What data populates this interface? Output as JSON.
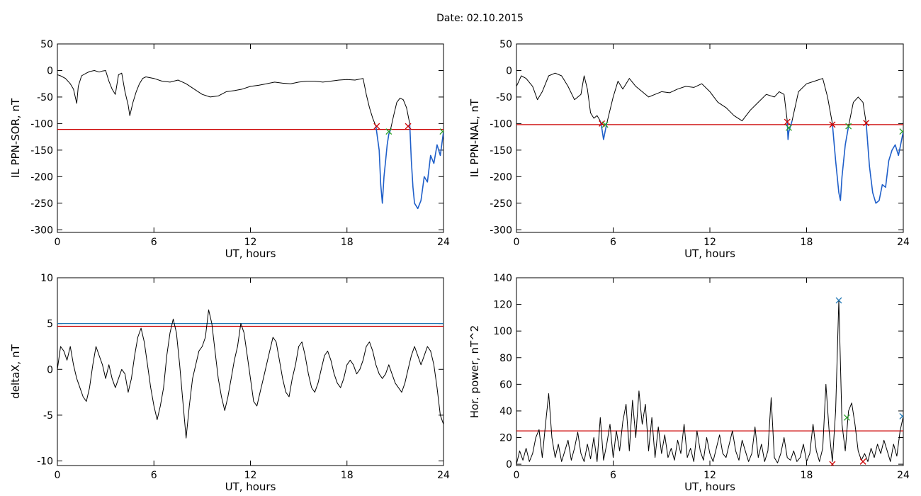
{
  "date_label": "Date:  02.10.2015",
  "chart_data": [
    {
      "id": "ppn-sor",
      "type": "line",
      "xlabel": "UT, hours",
      "ylabel": "IL PPN-SOR, nT",
      "xlim": [
        0,
        24
      ],
      "ylim": [
        -305,
        50
      ],
      "xticks": [
        0,
        6,
        12,
        18,
        24
      ],
      "yticks": [
        50,
        0,
        -50,
        -100,
        -150,
        -200,
        -250,
        -300
      ],
      "grid": false,
      "threshold": {
        "value": -111,
        "color": "#cc0000"
      },
      "series": [
        {
          "color": "#000000",
          "x": [
            0,
            0.2,
            0.5,
            0.8,
            1.0,
            1.2,
            1.3,
            1.5,
            1.8,
            2.0,
            2.3,
            2.6,
            2.8,
            3.0,
            3.2,
            3.4,
            3.6,
            3.8,
            4.0,
            4.2,
            4.4,
            4.5,
            4.7,
            4.9,
            5.1,
            5.3,
            5.5,
            6.0,
            6.5,
            7.0,
            7.5,
            8.0,
            8.5,
            9.0,
            9.5,
            10.0,
            10.5,
            11.0,
            11.5,
            12.0,
            12.5,
            13.0,
            13.5,
            14.0,
            14.5,
            15.0,
            15.5,
            16.0,
            16.5,
            17.0,
            17.5,
            18.0,
            18.5,
            19.0,
            19.2,
            19.4,
            19.6,
            19.8
          ],
          "y": [
            -8,
            -10,
            -15,
            -25,
            -35,
            -62,
            -30,
            -10,
            -5,
            -2,
            0,
            -3,
            -1,
            0,
            -20,
            -35,
            -45,
            -8,
            -5,
            -40,
            -65,
            -85,
            -60,
            -40,
            -25,
            -15,
            -12,
            -15,
            -20,
            -22,
            -18,
            -25,
            -35,
            -45,
            -50,
            -48,
            -40,
            -38,
            -35,
            -30,
            -28,
            -25,
            -22,
            -24,
            -25,
            -22,
            -20,
            -20,
            -22,
            -20,
            -18,
            -17,
            -18,
            -15,
            -45,
            -70,
            -90,
            -105
          ]
        },
        {
          "color": "#1f5fc9",
          "x": [
            19.8,
            20.0,
            20.1,
            20.2,
            20.3,
            20.4,
            20.5,
            20.6,
            20.7
          ],
          "y": [
            -105,
            -150,
            -215,
            -250,
            -200,
            -170,
            -140,
            -120,
            -112
          ]
        },
        {
          "color": "#000000",
          "x": [
            20.7,
            20.9,
            21.1,
            21.3,
            21.5,
            21.7,
            21.9
          ],
          "y": [
            -112,
            -85,
            -60,
            -52,
            -55,
            -70,
            -100
          ]
        },
        {
          "color": "#1f5fc9",
          "x": [
            21.9,
            22.0,
            22.1,
            22.2,
            22.4,
            22.6,
            22.8,
            23.0,
            23.2,
            23.4,
            23.6,
            23.8,
            24.0
          ],
          "y": [
            -100,
            -170,
            -220,
            -250,
            -260,
            -245,
            -200,
            -210,
            -160,
            -175,
            -140,
            -160,
            -115
          ]
        }
      ],
      "markers": [
        {
          "x": 19.85,
          "y": -105,
          "color": "#cc0000"
        },
        {
          "x": 20.6,
          "y": -115,
          "color": "#2ca02c"
        },
        {
          "x": 21.8,
          "y": -105,
          "color": "#cc0000"
        },
        {
          "x": 23.95,
          "y": -115,
          "color": "#2ca02c"
        }
      ]
    },
    {
      "id": "ppn-nal",
      "type": "line",
      "xlabel": "UT, hours",
      "ylabel": "IL PPN-NAL, nT",
      "xlim": [
        0,
        24
      ],
      "ylim": [
        -305,
        50
      ],
      "xticks": [
        0,
        6,
        12,
        18,
        24
      ],
      "yticks": [
        50,
        0,
        -50,
        -100,
        -150,
        -200,
        -250,
        -300
      ],
      "grid": false,
      "threshold": {
        "value": -102,
        "color": "#cc0000"
      },
      "series": [
        {
          "color": "#000000",
          "x": [
            0,
            0.3,
            0.6,
            1.0,
            1.3,
            1.6,
            2.0,
            2.4,
            2.8,
            3.2,
            3.6,
            4.0,
            4.2,
            4.4,
            4.6,
            4.8,
            5.0,
            5.2
          ],
          "y": [
            -30,
            -10,
            -15,
            -30,
            -55,
            -40,
            -10,
            -5,
            -10,
            -30,
            -55,
            -45,
            -10,
            -35,
            -80,
            -90,
            -85,
            -95
          ]
        },
        {
          "color": "#1f5fc9",
          "x": [
            5.2,
            5.3,
            5.4,
            5.5,
            5.6
          ],
          "y": [
            -95,
            -110,
            -130,
            -115,
            -100
          ]
        },
        {
          "color": "#000000",
          "x": [
            5.6,
            6.0,
            6.3,
            6.6,
            7.0,
            7.4,
            7.8,
            8.2,
            8.6,
            9.0,
            9.5,
            10.0,
            10.5,
            11.0,
            11.5,
            12.0,
            12.5,
            13.0,
            13.5,
            14.0,
            14.5,
            15.0,
            15.5,
            16.0,
            16.3,
            16.6,
            16.8
          ],
          "y": [
            -100,
            -50,
            -20,
            -35,
            -15,
            -30,
            -40,
            -50,
            -45,
            -40,
            -42,
            -35,
            -30,
            -32,
            -25,
            -40,
            -60,
            -70,
            -85,
            -95,
            -75,
            -60,
            -45,
            -50,
            -40,
            -45,
            -95
          ]
        },
        {
          "color": "#1f5fc9",
          "x": [
            16.8,
            16.85,
            16.9,
            17.0,
            17.1
          ],
          "y": [
            -95,
            -130,
            -115,
            -105,
            -95
          ]
        },
        {
          "color": "#000000",
          "x": [
            17.1,
            17.5,
            18.0,
            18.5,
            19.0,
            19.3,
            19.6
          ],
          "y": [
            -95,
            -40,
            -25,
            -20,
            -15,
            -50,
            -100
          ]
        },
        {
          "color": "#1f5fc9",
          "x": [
            19.6,
            19.8,
            20.0,
            20.1,
            20.2,
            20.4,
            20.6
          ],
          "y": [
            -100,
            -170,
            -230,
            -245,
            -200,
            -140,
            -105
          ]
        },
        {
          "color": "#000000",
          "x": [
            20.6,
            20.9,
            21.2,
            21.5,
            21.7
          ],
          "y": [
            -105,
            -60,
            -50,
            -60,
            -100
          ]
        },
        {
          "color": "#1f5fc9",
          "x": [
            21.7,
            21.9,
            22.1,
            22.3,
            22.5,
            22.7,
            22.9,
            23.1,
            23.3,
            23.5,
            23.7,
            24.0
          ],
          "y": [
            -100,
            -180,
            -230,
            -250,
            -245,
            -215,
            -220,
            -170,
            -150,
            -140,
            -160,
            -115
          ]
        }
      ],
      "markers": [
        {
          "x": 5.3,
          "y": -100,
          "color": "#cc0000"
        },
        {
          "x": 5.5,
          "y": -102,
          "color": "#2ca02c"
        },
        {
          "x": 16.8,
          "y": -97,
          "color": "#cc0000"
        },
        {
          "x": 16.9,
          "y": -108,
          "color": "#2ca02c"
        },
        {
          "x": 19.6,
          "y": -102,
          "color": "#cc0000"
        },
        {
          "x": 20.6,
          "y": -105,
          "color": "#2ca02c"
        },
        {
          "x": 21.7,
          "y": -99,
          "color": "#cc0000"
        },
        {
          "x": 23.95,
          "y": -115,
          "color": "#2ca02c"
        }
      ]
    },
    {
      "id": "deltax",
      "type": "line",
      "xlabel": "UT, hours",
      "ylabel": "deltaX, nT",
      "xlim": [
        0,
        24
      ],
      "ylim": [
        -10.5,
        10
      ],
      "xticks": [
        0,
        6,
        12,
        18,
        24
      ],
      "yticks": [
        10,
        5,
        0,
        -5,
        -10
      ],
      "grid": false,
      "thresholds": [
        {
          "value": 5.0,
          "color": "#1f77b4"
        },
        {
          "value": 4.7,
          "color": "#cc0000"
        }
      ],
      "series": [
        {
          "color": "#000000",
          "x": [
            0,
            0.2,
            0.4,
            0.6,
            0.8,
            1.0,
            1.2,
            1.4,
            1.6,
            1.8,
            2.0,
            2.2,
            2.4,
            2.6,
            2.8,
            3.0,
            3.2,
            3.4,
            3.6,
            3.8,
            4.0,
            4.2,
            4.4,
            4.6,
            4.8,
            5.0,
            5.2,
            5.4,
            5.6,
            5.8,
            6.0,
            6.2,
            6.4,
            6.6,
            6.8,
            7.0,
            7.2,
            7.4,
            7.6,
            7.8,
            8.0,
            8.2,
            8.4,
            8.6,
            8.8,
            9.0,
            9.2,
            9.4,
            9.6,
            9.8,
            10.0,
            10.2,
            10.4,
            10.6,
            10.8,
            11.0,
            11.2,
            11.4,
            11.6,
            11.8,
            12.0,
            12.2,
            12.4,
            12.6,
            12.8,
            13.0,
            13.2,
            13.4,
            13.6,
            13.8,
            14.0,
            14.2,
            14.4,
            14.6,
            14.8,
            15.0,
            15.2,
            15.4,
            15.6,
            15.8,
            16.0,
            16.2,
            16.4,
            16.6,
            16.8,
            17.0,
            17.2,
            17.4,
            17.6,
            17.8,
            18.0,
            18.2,
            18.4,
            18.6,
            18.8,
            19.0,
            19.2,
            19.4,
            19.6,
            19.8,
            20.0,
            20.2,
            20.4,
            20.6,
            20.8,
            21.0,
            21.2,
            21.4,
            21.6,
            21.8,
            22.0,
            22.2,
            22.4,
            22.6,
            22.8,
            23.0,
            23.2,
            23.4,
            23.6,
            23.8,
            24.0
          ],
          "y": [
            0,
            2.5,
            2.0,
            1.0,
            2.5,
            0.5,
            -1.0,
            -2.0,
            -3.0,
            -3.5,
            -2.0,
            0.5,
            2.5,
            1.5,
            0.5,
            -1.0,
            0.5,
            -1.0,
            -2.0,
            -1.0,
            0,
            -0.5,
            -2.5,
            -1.0,
            1.5,
            3.5,
            4.5,
            3.0,
            0.5,
            -2.0,
            -4.0,
            -5.5,
            -4.0,
            -2.0,
            1.5,
            4.0,
            5.5,
            4.0,
            0.5,
            -3.5,
            -7.5,
            -4.0,
            -1.0,
            0.5,
            2.0,
            2.5,
            3.5,
            6.5,
            5.0,
            2.0,
            -1.0,
            -3.0,
            -4.5,
            -3.0,
            -1.0,
            1.0,
            2.5,
            5.0,
            4.0,
            1.5,
            -1.0,
            -3.5,
            -4.0,
            -2.5,
            -1.0,
            0.5,
            2.0,
            3.5,
            3.0,
            1.0,
            -1.0,
            -2.5,
            -3.0,
            -1.0,
            0.5,
            2.5,
            3.0,
            1.5,
            -0.5,
            -2.0,
            -2.5,
            -1.5,
            0,
            1.5,
            2.0,
            1.0,
            -0.5,
            -1.5,
            -2.0,
            -1.0,
            0.5,
            1.0,
            0.5,
            -0.5,
            0,
            1.0,
            2.5,
            3.0,
            2.0,
            0.5,
            -0.5,
            -1.0,
            -0.5,
            0.5,
            -0.5,
            -1.5,
            -2.0,
            -2.5,
            -1.5,
            0,
            1.5,
            2.5,
            1.5,
            0.5,
            1.5,
            2.5,
            2.0,
            0.5,
            -2.0,
            -5.0,
            -6.0
          ]
        }
      ],
      "markers": []
    },
    {
      "id": "hor-power",
      "type": "line",
      "xlabel": "UT, hours",
      "ylabel": "Hor. power, nT^2",
      "xlim": [
        0,
        24
      ],
      "ylim": [
        -1,
        140
      ],
      "xticks": [
        0,
        6,
        12,
        18,
        24
      ],
      "yticks": [
        140,
        120,
        100,
        80,
        60,
        40,
        20,
        0
      ],
      "grid": false,
      "threshold": {
        "value": 25,
        "color": "#cc0000"
      },
      "series": [
        {
          "color": "#000000",
          "x": [
            0,
            0.2,
            0.4,
            0.6,
            0.8,
            1.0,
            1.2,
            1.4,
            1.6,
            1.8,
            2.0,
            2.2,
            2.4,
            2.6,
            2.8,
            3.0,
            3.2,
            3.4,
            3.6,
            3.8,
            4.0,
            4.2,
            4.4,
            4.6,
            4.8,
            5.0,
            5.2,
            5.4,
            5.6,
            5.8,
            6.0,
            6.2,
            6.4,
            6.6,
            6.8,
            7.0,
            7.2,
            7.4,
            7.6,
            7.8,
            8.0,
            8.2,
            8.4,
            8.6,
            8.8,
            9.0,
            9.2,
            9.4,
            9.6,
            9.8,
            10.0,
            10.2,
            10.4,
            10.6,
            10.8,
            11.0,
            11.2,
            11.4,
            11.6,
            11.8,
            12.0,
            12.2,
            12.4,
            12.6,
            12.8,
            13.0,
            13.2,
            13.4,
            13.6,
            13.8,
            14.0,
            14.2,
            14.4,
            14.6,
            14.8,
            15.0,
            15.2,
            15.4,
            15.6,
            15.8,
            16.0,
            16.2,
            16.4,
            16.6,
            16.8,
            17.0,
            17.2,
            17.4,
            17.6,
            17.8,
            18.0,
            18.2,
            18.4,
            18.6,
            18.8,
            19.0,
            19.2,
            19.4,
            19.6,
            19.8,
            20.0,
            20.2,
            20.4,
            20.6,
            20.8,
            21.0,
            21.2,
            21.4,
            21.6,
            21.8,
            22.0,
            22.2,
            22.4,
            22.6,
            22.8,
            23.0,
            23.2,
            23.4,
            23.6,
            23.8,
            24.0
          ],
          "y": [
            0,
            10,
            3,
            12,
            2,
            8,
            20,
            26,
            5,
            30,
            53,
            20,
            5,
            15,
            2,
            10,
            18,
            3,
            12,
            24,
            8,
            2,
            15,
            4,
            20,
            2,
            35,
            3,
            15,
            30,
            5,
            25,
            10,
            32,
            45,
            10,
            48,
            20,
            55,
            30,
            45,
            10,
            35,
            5,
            28,
            8,
            22,
            5,
            12,
            3,
            18,
            8,
            30,
            5,
            12,
            2,
            25,
            10,
            3,
            20,
            8,
            2,
            12,
            22,
            8,
            5,
            15,
            25,
            10,
            3,
            18,
            10,
            2,
            8,
            28,
            5,
            15,
            2,
            10,
            50,
            5,
            1,
            8,
            20,
            5,
            3,
            10,
            2,
            5,
            15,
            2,
            8,
            30,
            10,
            2,
            12,
            60,
            25,
            2,
            40,
            123,
            30,
            10,
            40,
            46,
            30,
            10,
            3,
            8,
            2,
            12,
            5,
            15,
            8,
            18,
            10,
            2,
            15,
            6,
            25,
            36
          ]
        }
      ],
      "markers": [
        {
          "x": 20.0,
          "y": 123,
          "color": "#1f77b4"
        },
        {
          "x": 20.5,
          "y": 35,
          "color": "#2ca02c"
        },
        {
          "x": 19.6,
          "y": 0,
          "color": "#cc0000"
        },
        {
          "x": 21.5,
          "y": 2,
          "color": "#cc0000"
        },
        {
          "x": 23.95,
          "y": 36,
          "color": "#1f77b4"
        }
      ]
    }
  ]
}
